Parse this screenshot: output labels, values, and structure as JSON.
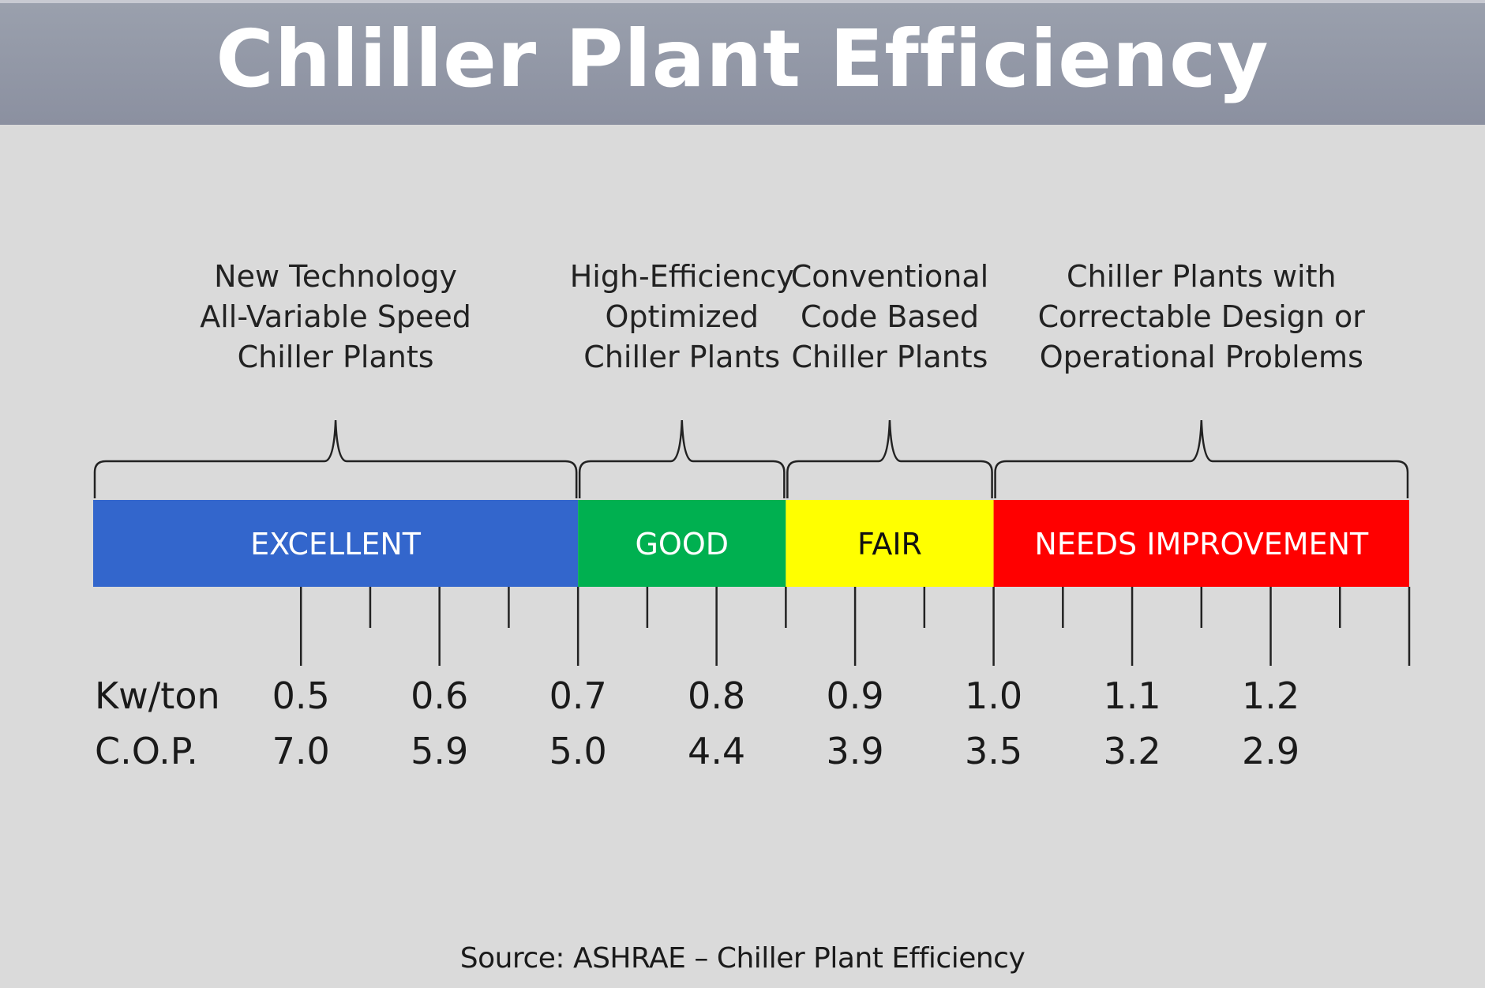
{
  "title": "Chliller Plant Efficiency",
  "source": "Source: ASHRAE – Chiller Plant Efficiency",
  "colors": {
    "header_bg": "#8e93a2",
    "background": "#dadada",
    "excellent": "#3366cc",
    "good": "#00b050",
    "fair": "#ffff00",
    "needs_improvement": "#ff0000"
  },
  "scale": {
    "start": 0.35,
    "end": 1.3,
    "row_labels": [
      "Kw/ton",
      "C.O.P."
    ]
  },
  "categories": [
    {
      "label": "EXCELLENT",
      "from": 0.35,
      "to": 0.7,
      "color": "#3366cc",
      "text_color": "#ffffff",
      "description": [
        "New Technology",
        "All-Variable Speed",
        "Chiller Plants"
      ]
    },
    {
      "label": "GOOD",
      "from": 0.7,
      "to": 0.85,
      "color": "#00b050",
      "text_color": "#ffffff",
      "description": [
        "High-Efficiency",
        "Optimized",
        "Chiller Plants"
      ]
    },
    {
      "label": "FAIR",
      "from": 0.85,
      "to": 1.0,
      "color": "#ffff00",
      "text_color": "#111111",
      "description": [
        "Conventional",
        "Code Based",
        "Chiller Plants"
      ]
    },
    {
      "label": "NEEDS IMPROVEMENT",
      "from": 1.0,
      "to": 1.3,
      "color": "#ff0000",
      "text_color": "#ffffff",
      "description": [
        "Chiller Plants with",
        "Correctable Design or",
        "Operational Problems"
      ]
    }
  ],
  "major_ticks": [
    {
      "kw_ton": "0.5",
      "cop": "7.0",
      "value": 0.5
    },
    {
      "kw_ton": "0.6",
      "cop": "5.9",
      "value": 0.6
    },
    {
      "kw_ton": "0.7",
      "cop": "5.0",
      "value": 0.7
    },
    {
      "kw_ton": "0.8",
      "cop": "4.4",
      "value": 0.8
    },
    {
      "kw_ton": "0.9",
      "cop": "3.9",
      "value": 0.9
    },
    {
      "kw_ton": "1.0",
      "cop": "3.5",
      "value": 1.0
    },
    {
      "kw_ton": "1.1",
      "cop": "3.2",
      "value": 1.1
    },
    {
      "kw_ton": "1.2",
      "cop": "2.9",
      "value": 1.2
    }
  ],
  "minor_ticks": [
    0.55,
    0.65,
    0.75,
    0.85,
    0.95,
    1.05,
    1.15,
    1.25
  ],
  "end_tick": 1.3
}
